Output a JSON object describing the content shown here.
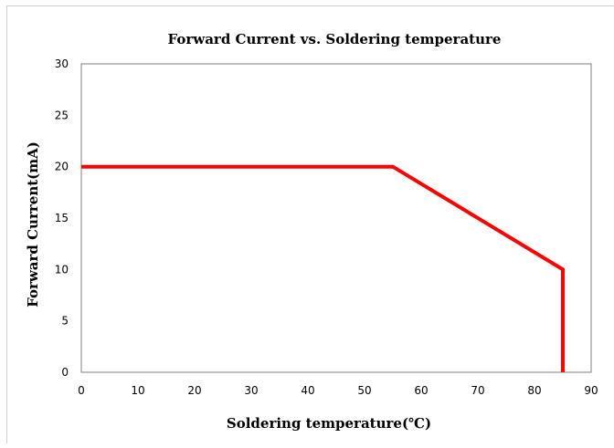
{
  "chart_data": {
    "type": "line",
    "title": "Forward Current vs. Soldering temperature",
    "xlabel": "Soldering temperature(℃)",
    "ylabel": "Forward Current(mA)",
    "xlim": [
      0,
      90
    ],
    "ylim": [
      0,
      30
    ],
    "xticks": [
      "0",
      "10",
      "20",
      "30",
      "40",
      "50",
      "60",
      "70",
      "80",
      "90"
    ],
    "yticks": [
      "0",
      "5",
      "10",
      "15",
      "20",
      "25",
      "30"
    ],
    "grid": true,
    "legend": "none",
    "series": [
      {
        "x": [
          0,
          55,
          85,
          85
        ],
        "y": [
          20,
          20,
          10,
          0
        ],
        "color": "#ff0000"
      }
    ]
  }
}
